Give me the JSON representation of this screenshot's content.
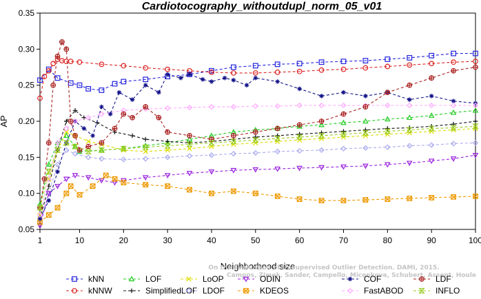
{
  "chart_data": {
    "type": "line",
    "title": "Cardiotocography_withoutdupl_norm_05_v01",
    "xlabel": "Neighborhood size",
    "ylabel": "AP",
    "xlim": [
      1,
      100
    ],
    "ylim": [
      0.05,
      0.35
    ],
    "xticks": [
      "1",
      "10",
      "20",
      "30",
      "40",
      "50",
      "60",
      "70",
      "80",
      "90",
      "100"
    ],
    "yticks": [
      "0.05",
      "0.10",
      "0.15",
      "0.20",
      "0.25",
      "0.30",
      "0.35"
    ],
    "grid": false,
    "legend_position": "bottom",
    "watermark": [
      "Campos, Zimek, Sander, Campello, Micenkova, Schubert, Assent, Houle",
      "On the Evaluation of Unsupervised Outlier Detection. DAMI, 2015."
    ],
    "series": [
      {
        "name": "kNN",
        "color": "#2222dd",
        "marker": "square",
        "x": [
          1,
          3,
          5,
          8,
          10,
          12,
          15,
          18,
          20,
          25,
          30,
          35,
          40,
          45,
          50,
          55,
          60,
          65,
          70,
          75,
          80,
          85,
          90,
          95,
          100
        ],
        "y": [
          0.257,
          0.272,
          0.26,
          0.253,
          0.25,
          0.245,
          0.243,
          0.252,
          0.255,
          0.258,
          0.262,
          0.265,
          0.27,
          0.275,
          0.277,
          0.279,
          0.28,
          0.282,
          0.283,
          0.284,
          0.286,
          0.288,
          0.291,
          0.294,
          0.294
        ]
      },
      {
        "name": "kNNW",
        "color": "#dd2222",
        "marker": "circle",
        "x": [
          1,
          2,
          3,
          4,
          5,
          6,
          7,
          8,
          10,
          15,
          20,
          25,
          30,
          35,
          40,
          45,
          50,
          55,
          60,
          65,
          70,
          75,
          80,
          85,
          90,
          95,
          100
        ],
        "y": [
          0.232,
          0.262,
          0.27,
          0.28,
          0.286,
          0.284,
          0.283,
          0.283,
          0.282,
          0.279,
          0.277,
          0.274,
          0.272,
          0.27,
          0.268,
          0.267,
          0.267,
          0.268,
          0.269,
          0.271,
          0.272,
          0.274,
          0.276,
          0.278,
          0.28,
          0.282,
          0.283
        ]
      },
      {
        "name": "LOF",
        "color": "#22cc22",
        "marker": "triangle-up",
        "x": [
          1,
          3,
          5,
          7,
          9,
          10,
          15,
          20,
          25,
          30,
          35,
          40,
          45,
          50,
          55,
          60,
          65,
          70,
          75,
          80,
          85,
          90,
          95,
          100
        ],
        "y": [
          0.085,
          0.14,
          0.17,
          0.18,
          0.165,
          0.158,
          0.16,
          0.162,
          0.166,
          0.17,
          0.175,
          0.18,
          0.185,
          0.188,
          0.19,
          0.193,
          0.195,
          0.198,
          0.2,
          0.203,
          0.205,
          0.208,
          0.212,
          0.215
        ]
      },
      {
        "name": "SimplifiedLOF",
        "color": "#111111",
        "marker": "plus",
        "x": [
          1,
          3,
          5,
          7,
          9,
          11,
          14,
          18,
          22,
          25,
          30,
          35,
          40,
          45,
          50,
          55,
          60,
          65,
          70,
          75,
          80,
          85,
          90,
          95,
          100
        ],
        "y": [
          0.065,
          0.11,
          0.16,
          0.2,
          0.215,
          0.205,
          0.198,
          0.185,
          0.18,
          0.175,
          0.172,
          0.17,
          0.172,
          0.175,
          0.178,
          0.18,
          0.182,
          0.184,
          0.186,
          0.188,
          0.19,
          0.191,
          0.193,
          0.196,
          0.2
        ]
      },
      {
        "name": "LoOP",
        "color": "#dddd00",
        "marker": "x",
        "x": [
          1,
          3,
          5,
          7,
          9,
          12,
          15,
          20,
          25,
          30,
          35,
          40,
          45,
          50,
          55,
          60,
          65,
          70,
          75,
          80,
          85,
          90,
          95,
          100
        ],
        "y": [
          0.07,
          0.12,
          0.16,
          0.185,
          0.18,
          0.172,
          0.168,
          0.16,
          0.158,
          0.16,
          0.162,
          0.165,
          0.168,
          0.17,
          0.172,
          0.174,
          0.176,
          0.178,
          0.18,
          0.182,
          0.184,
          0.186,
          0.188,
          0.19
        ]
      },
      {
        "name": "LDOF",
        "color": "#aaaaee",
        "marker": "diamond",
        "x": [
          1,
          3,
          5,
          7,
          9,
          12,
          15,
          20,
          25,
          30,
          35,
          40,
          45,
          50,
          55,
          60,
          65,
          70,
          75,
          80,
          85,
          90,
          95,
          100
        ],
        "y": [
          0.06,
          0.1,
          0.14,
          0.16,
          0.155,
          0.15,
          0.148,
          0.147,
          0.148,
          0.15,
          0.152,
          0.153,
          0.155,
          0.156,
          0.158,
          0.159,
          0.16,
          0.162,
          0.163,
          0.164,
          0.166,
          0.167,
          0.169,
          0.17
        ]
      },
      {
        "name": "ODIN",
        "color": "#9922dd",
        "marker": "triangle-down",
        "x": [
          1,
          3,
          5,
          7,
          9,
          12,
          15,
          18,
          20,
          25,
          30,
          35,
          40,
          45,
          50,
          55,
          60,
          65,
          70,
          75,
          80,
          85,
          90,
          95,
          100
        ],
        "y": [
          0.055,
          0.1,
          0.11,
          0.12,
          0.125,
          0.122,
          0.118,
          0.115,
          0.118,
          0.122,
          0.125,
          0.128,
          0.13,
          0.132,
          0.133,
          0.134,
          0.135,
          0.136,
          0.137,
          0.138,
          0.14,
          0.142,
          0.145,
          0.148,
          0.153
        ]
      },
      {
        "name": "KDEOS",
        "color": "#ee9900",
        "marker": "square-x",
        "x": [
          1,
          3,
          5,
          7,
          8,
          10,
          13,
          16,
          18,
          20,
          25,
          30,
          35,
          40,
          45,
          50,
          55,
          60,
          65,
          70,
          75,
          80,
          85,
          90,
          95,
          100
        ],
        "y": [
          0.06,
          0.07,
          0.08,
          0.1,
          0.11,
          0.098,
          0.11,
          0.125,
          0.12,
          0.115,
          0.112,
          0.11,
          0.105,
          0.1,
          0.103,
          0.1,
          0.096,
          0.092,
          0.09,
          0.09,
          0.091,
          0.092,
          0.093,
          0.094,
          0.095,
          0.096
        ]
      },
      {
        "name": "COF",
        "color": "#111188",
        "marker": "asterisk",
        "x": [
          1,
          3,
          5,
          7,
          9,
          11,
          13,
          15,
          17,
          19,
          22,
          25,
          28,
          30,
          33,
          35,
          38,
          40,
          43,
          45,
          48,
          50,
          55,
          60,
          65,
          70,
          75,
          80,
          85,
          90,
          95,
          100
        ],
        "y": [
          0.065,
          0.09,
          0.13,
          0.17,
          0.2,
          0.19,
          0.18,
          0.22,
          0.21,
          0.24,
          0.23,
          0.25,
          0.24,
          0.265,
          0.26,
          0.265,
          0.258,
          0.255,
          0.26,
          0.257,
          0.25,
          0.26,
          0.255,
          0.245,
          0.235,
          0.24,
          0.235,
          0.24,
          0.23,
          0.235,
          0.228,
          0.225
        ]
      },
      {
        "name": "FastABOD",
        "color": "#ffaaff",
        "marker": "diamond",
        "x": [
          1,
          3,
          5,
          7,
          9,
          12,
          15,
          20,
          25,
          30,
          35,
          40,
          45,
          50,
          55,
          60,
          65,
          70,
          75,
          80,
          85,
          90,
          95,
          100
        ],
        "y": [
          0.07,
          0.12,
          0.17,
          0.19,
          0.2,
          0.205,
          0.21,
          0.215,
          0.217,
          0.218,
          0.219,
          0.22,
          0.22,
          0.221,
          0.221,
          0.222,
          0.222,
          0.222,
          0.222,
          0.222,
          0.222,
          0.222,
          0.222,
          0.222
        ]
      },
      {
        "name": "LDF",
        "color": "#aa2222",
        "marker": "circle-plus",
        "x": [
          1,
          2,
          3,
          4,
          5,
          6,
          7,
          8,
          9,
          10,
          12,
          15,
          18,
          20,
          22,
          25,
          28,
          30,
          35,
          40,
          45,
          50,
          55,
          60,
          65,
          70,
          75,
          80,
          85,
          90,
          95,
          100
        ],
        "y": [
          0.08,
          0.12,
          0.17,
          0.25,
          0.29,
          0.31,
          0.3,
          0.2,
          0.18,
          0.16,
          0.165,
          0.17,
          0.19,
          0.21,
          0.205,
          0.22,
          0.205,
          0.185,
          0.18,
          0.175,
          0.18,
          0.185,
          0.19,
          0.195,
          0.2,
          0.21,
          0.22,
          0.24,
          0.25,
          0.26,
          0.27,
          0.275
        ]
      },
      {
        "name": "INFLO",
        "color": "#99cc22",
        "marker": "hourglass",
        "x": [
          1,
          3,
          5,
          7,
          9,
          12,
          15,
          20,
          25,
          30,
          35,
          40,
          45,
          50,
          55,
          60,
          65,
          70,
          75,
          80,
          85,
          90,
          95,
          100
        ],
        "y": [
          0.08,
          0.13,
          0.16,
          0.17,
          0.165,
          0.158,
          0.16,
          0.162,
          0.164,
          0.166,
          0.168,
          0.17,
          0.172,
          0.174,
          0.176,
          0.178,
          0.18,
          0.182,
          0.184,
          0.186,
          0.188,
          0.19,
          0.191,
          0.193
        ]
      }
    ]
  }
}
